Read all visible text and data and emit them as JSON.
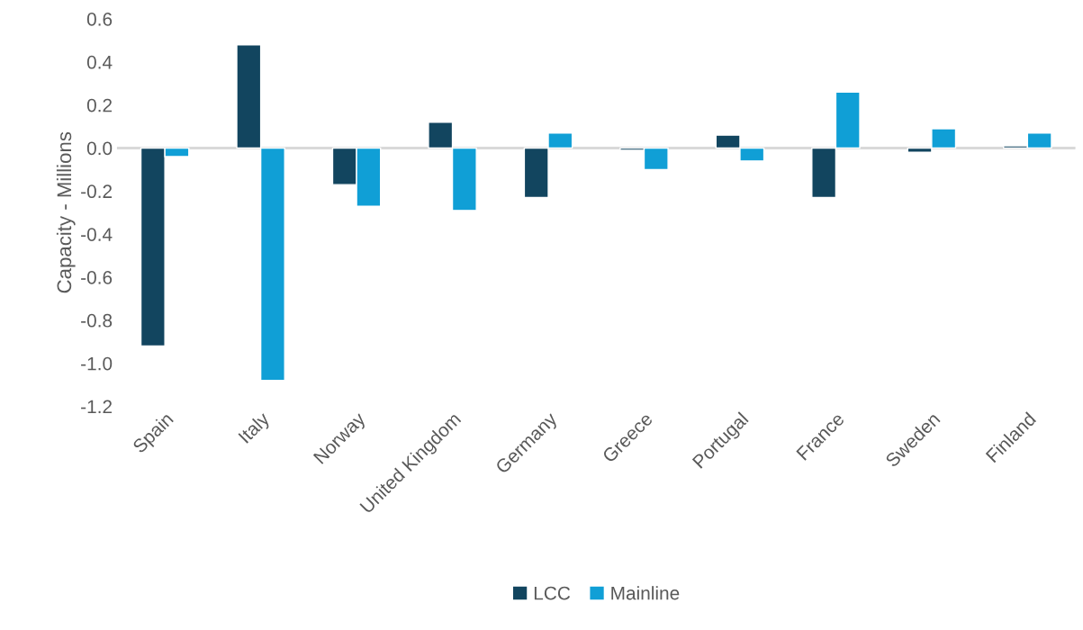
{
  "chart_data": {
    "type": "bar",
    "ylabel": "Capacity - Millions",
    "categories": [
      "Spain",
      "Italy",
      "Norway",
      "United Kingdom",
      "Germany",
      "Greece",
      "Portugal",
      "France",
      "Sweden",
      "Finland"
    ],
    "series": [
      {
        "name": "LCC",
        "color": "#12455f",
        "values": [
          -0.92,
          0.48,
          -0.17,
          0.12,
          -0.23,
          -0.01,
          0.06,
          -0.23,
          -0.02,
          0.01
        ]
      },
      {
        "name": "Mainline",
        "color": "#109fd6",
        "values": [
          -0.04,
          -1.08,
          -0.27,
          -0.29,
          0.07,
          -0.1,
          -0.06,
          0.26,
          0.09,
          0.07
        ]
      }
    ],
    "ylim": [
      -1.2,
      0.6
    ],
    "yticks": [
      {
        "value": -1.2,
        "label": "-1.2"
      },
      {
        "value": -1.0,
        "label": "-1.0"
      },
      {
        "value": -0.8,
        "label": "-0.8"
      },
      {
        "value": -0.6,
        "label": "-0.6"
      },
      {
        "value": -0.4,
        "label": "-0.4"
      },
      {
        "value": -0.2,
        "label": "-0.2"
      },
      {
        "value": 0.0,
        "label": "0.0"
      },
      {
        "value": 0.2,
        "label": "0.2"
      },
      {
        "value": 0.4,
        "label": "0.4"
      },
      {
        "value": 0.6,
        "label": "0.6"
      }
    ],
    "ref_lines": [
      {
        "axis": "y",
        "value": 0,
        "color": "#d9d9d9"
      }
    ],
    "legend": "bottom"
  }
}
